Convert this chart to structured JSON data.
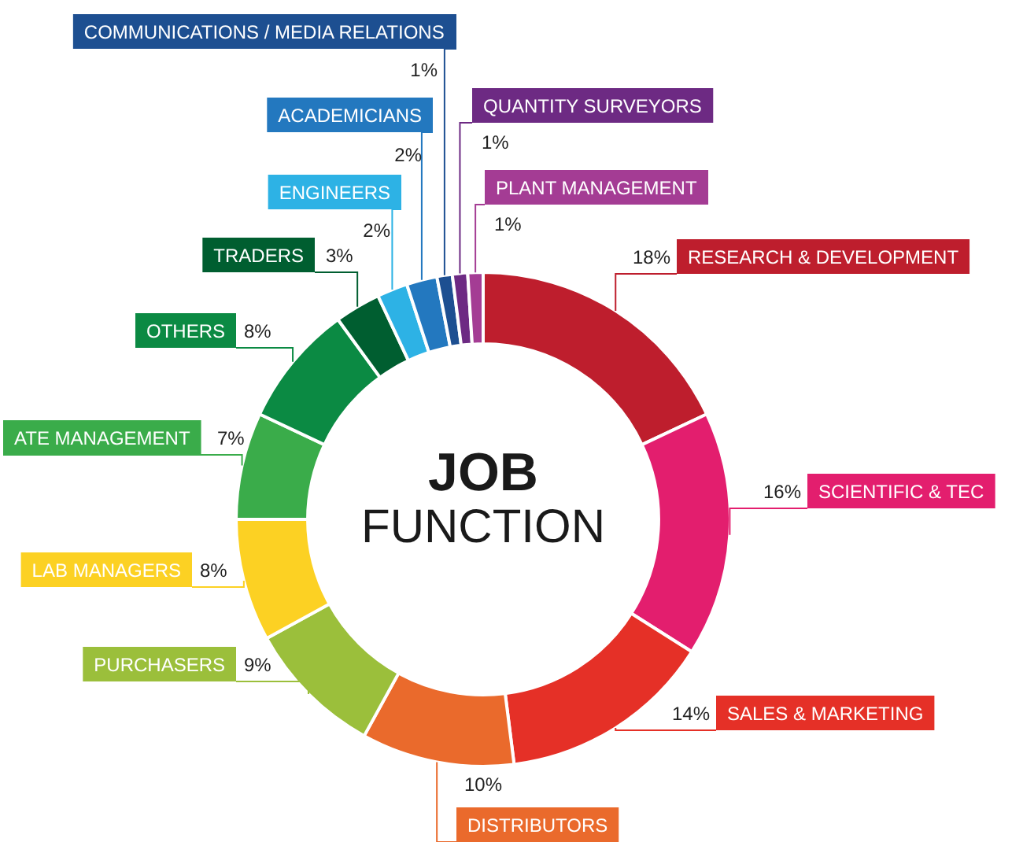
{
  "chart_data": {
    "type": "donut",
    "title": "JOB",
    "subtitle": "FUNCTION",
    "categories": [
      "RESEARCH & DEVELOPMENT",
      "SCIENTIFIC & TEC",
      "SALES & MARKETING",
      "DISTRIBUTORS",
      "PURCHASERS",
      "LAB MANAGERS",
      "ATE MANAGEMENT",
      "OTHERS",
      "TRADERS",
      "ENGINEERS",
      "ACADEMICIANS",
      "COMMUNICATIONS / MEDIA RELATIONS",
      "QUANTITY SURVEYORS",
      "PLANT MANAGEMENT"
    ],
    "values": [
      18,
      16,
      14,
      10,
      9,
      8,
      7,
      8,
      3,
      2,
      2,
      1,
      1,
      1
    ],
    "value_labels": [
      "18%",
      "16%",
      "14%",
      "10%",
      "9%",
      "8%",
      "7%",
      "8%",
      "3%",
      "2%",
      "2%",
      "1%",
      "1%",
      "1%"
    ],
    "colors": [
      "#be1e2d",
      "#e31e6e",
      "#e53027",
      "#ea6a2c",
      "#9bbf3b",
      "#fcd123",
      "#3aac4a",
      "#0b8a43",
      "#005e30",
      "#2db2e5",
      "#2378bf",
      "#1d4f91",
      "#6d2a83",
      "#a43c94"
    ],
    "legend": false
  }
}
